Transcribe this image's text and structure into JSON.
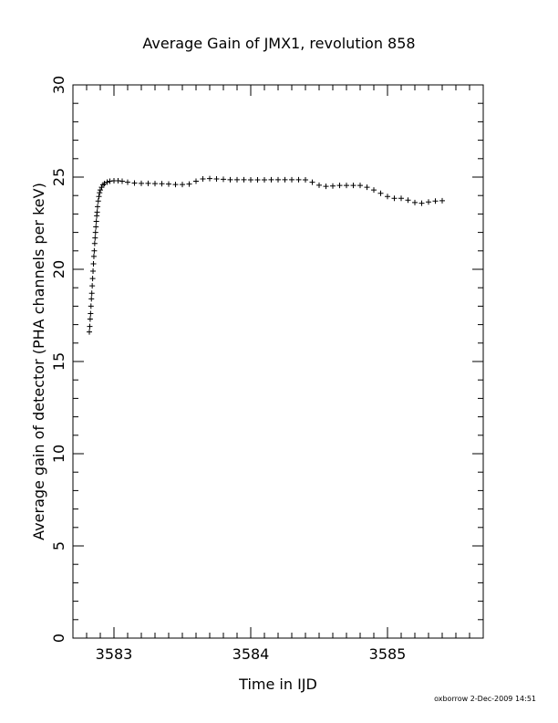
{
  "chart_data": {
    "type": "scatter",
    "title": "Average Gain of JMX1, revolution 858",
    "xlabel": "Time in IJD",
    "ylabel": "Average gain of detector (PHA channels per keV)",
    "xlim": [
      3582.7,
      3585.7
    ],
    "ylim": [
      0,
      30
    ],
    "xticks": [
      3583,
      3584,
      3585
    ],
    "yticks": [
      0,
      5,
      10,
      15,
      20,
      25,
      30
    ],
    "marker": "plus",
    "grid": false,
    "series": [
      {
        "x": [
          3582.82,
          3582.823,
          3582.826,
          3582.829,
          3582.832,
          3582.835,
          3582.838,
          3582.841,
          3582.844,
          3582.847,
          3582.85,
          3582.853,
          3582.856,
          3582.859,
          3582.862,
          3582.865,
          3582.868,
          3582.871,
          3582.874,
          3582.877,
          3582.88,
          3582.885,
          3582.89,
          3582.895,
          3582.9,
          3582.91,
          3582.92,
          3582.93,
          3582.95,
          3582.97,
          3583.0,
          3583.03,
          3583.06,
          3583.1,
          3583.15,
          3583.2,
          3583.25,
          3583.3,
          3583.35,
          3583.4,
          3583.45,
          3583.5,
          3583.55,
          3583.6,
          3583.65,
          3583.7,
          3583.75,
          3583.8,
          3583.85,
          3583.9,
          3583.95,
          3584.0,
          3584.05,
          3584.1,
          3584.15,
          3584.2,
          3584.25,
          3584.3,
          3584.35,
          3584.4,
          3584.45,
          3584.5,
          3584.55,
          3584.6,
          3584.65,
          3584.7,
          3584.75,
          3584.8,
          3584.85,
          3584.9,
          3584.95,
          3585.0,
          3585.05,
          3585.1,
          3585.15,
          3585.2,
          3585.25,
          3585.3,
          3585.35,
          3585.4
        ],
        "y": [
          16.6,
          16.9,
          17.3,
          17.6,
          18.0,
          18.4,
          18.7,
          19.1,
          19.5,
          19.9,
          20.3,
          20.7,
          21.0,
          21.4,
          21.7,
          22.0,
          22.3,
          22.6,
          22.9,
          23.1,
          23.4,
          23.7,
          23.95,
          24.15,
          24.3,
          24.45,
          24.58,
          24.65,
          24.73,
          24.78,
          24.8,
          24.8,
          24.78,
          24.72,
          24.68,
          24.66,
          24.66,
          24.65,
          24.64,
          24.62,
          24.6,
          24.6,
          24.62,
          24.78,
          24.9,
          24.92,
          24.9,
          24.88,
          24.86,
          24.86,
          24.86,
          24.85,
          24.85,
          24.85,
          24.86,
          24.86,
          24.86,
          24.86,
          24.86,
          24.85,
          24.72,
          24.56,
          24.5,
          24.52,
          24.55,
          24.55,
          24.55,
          24.55,
          24.45,
          24.3,
          24.12,
          23.95,
          23.85,
          23.85,
          23.75,
          23.62,
          23.58,
          23.65,
          23.7,
          23.72
        ]
      }
    ]
  },
  "footer": {
    "stamp": "oxborrow  2-Dec-2009 14:51"
  }
}
